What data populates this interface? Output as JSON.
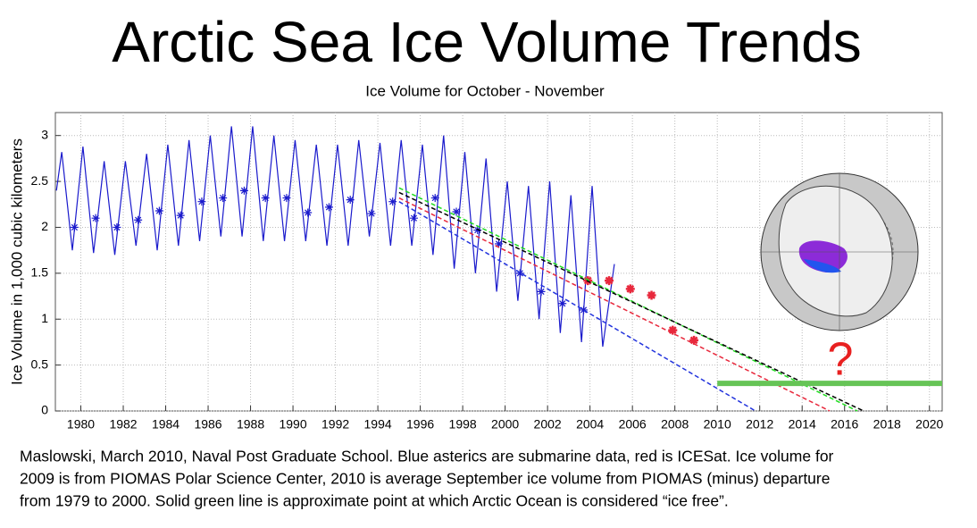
{
  "chart_data": {
    "type": "line",
    "title": "Arctic Sea Ice Volume Trends",
    "subtitle": "Ice Volume for October - November",
    "y_label": "Ice Volume in 1,000 cubic kilometers",
    "annotation": "?",
    "caption": [
      "Maslowski, March 2010, Naval Post Graduate School. Blue asterics are submarine data, red is ICESat. Ice volume for",
      "2009 is from PIOMAS Polar Science Center, 2010 is average September ice volume from PIOMAS (minus) departure",
      "from 1979 to 2000. Solid green line is approximate point at which Arctic Ocean is considered “ice free”."
    ],
    "xlim": [
      1978.8,
      2020.6
    ],
    "ylim": [
      0,
      3.25
    ],
    "xticks": [
      1980,
      1982,
      1984,
      1986,
      1988,
      1990,
      1992,
      1994,
      1996,
      1998,
      2000,
      2002,
      2004,
      2006,
      2008,
      2010,
      2012,
      2014,
      2016,
      2018,
      2020
    ],
    "yticks": [
      0,
      0.5,
      1,
      1.5,
      2,
      2.5,
      3
    ],
    "grid": true,
    "series": [
      {
        "color": "#1a1acc",
        "width": 1.2,
        "dash": false,
        "marker": "none",
        "x": [
          1978.85,
          1979.1,
          1979.6,
          1980.1,
          1980.6,
          1981.1,
          1981.6,
          1982.1,
          1982.6,
          1983.1,
          1983.6,
          1984.1,
          1984.6,
          1985.1,
          1985.6,
          1986.1,
          1986.6,
          1987.1,
          1987.6,
          1988.1,
          1988.6,
          1989.1,
          1989.6,
          1990.1,
          1990.6,
          1991.1,
          1991.6,
          1992.1,
          1992.6,
          1993.1,
          1993.6,
          1994.1,
          1994.6,
          1995.1,
          1995.6,
          1996.1,
          1996.6,
          1997.1,
          1997.6,
          1998.1,
          1998.6,
          1999.1,
          1999.6,
          2000.1,
          2000.6,
          2001.1,
          2001.6,
          2002.1,
          2002.6,
          2003.1,
          2003.6,
          2004.1,
          2004.6,
          2005.15
        ],
        "values": [
          2.4,
          2.82,
          1.75,
          2.88,
          1.72,
          2.72,
          1.7,
          2.72,
          1.8,
          2.8,
          1.75,
          2.9,
          1.8,
          2.95,
          1.85,
          3.0,
          1.9,
          3.1,
          1.9,
          3.1,
          1.85,
          3.0,
          1.85,
          2.95,
          1.85,
          2.9,
          1.8,
          2.9,
          1.8,
          2.95,
          1.9,
          2.92,
          1.8,
          2.95,
          1.8,
          2.9,
          1.7,
          3.0,
          1.55,
          2.82,
          1.5,
          2.75,
          1.3,
          2.5,
          1.2,
          2.45,
          1.0,
          2.5,
          0.85,
          2.35,
          0.75,
          2.45,
          0.7,
          1.6
        ]
      },
      {
        "color": "#1a1acc",
        "width": 1.2,
        "dash": false,
        "marker": "asterisk",
        "x": [
          1979.7,
          1980.7,
          1981.7,
          1982.7,
          1983.7,
          1984.7,
          1985.7,
          1986.7,
          1987.7,
          1988.7,
          1989.7,
          1990.7,
          1991.7,
          1992.7,
          1993.7,
          1994.7,
          1995.7,
          1996.7,
          1997.7,
          1998.7,
          1999.7,
          2000.7,
          2001.7,
          2002.7,
          2003.7
        ],
        "values": [
          2.0,
          2.1,
          2.0,
          2.08,
          2.18,
          2.13,
          2.28,
          2.32,
          2.4,
          2.32,
          2.32,
          2.16,
          2.22,
          2.3,
          2.15,
          2.28,
          2.1,
          2.32,
          2.17,
          1.97,
          1.82,
          1.5,
          1.3,
          1.17,
          1.1
        ]
      },
      {
        "color": "#e8283c",
        "width": 2.5,
        "dash": false,
        "marker": "asterisk",
        "x": [
          2003.9,
          2004.9,
          2005.9,
          2006.9,
          2007.9,
          2008.9
        ],
        "values": [
          1.42,
          1.42,
          1.33,
          1.26,
          0.88,
          0.77
        ]
      },
      {
        "color": "#22dd22",
        "width": 1.5,
        "dash": true,
        "marker": "none",
        "x": [
          1995,
          2016.6
        ],
        "values": [
          2.43,
          0
        ]
      },
      {
        "color": "#000000",
        "width": 1.5,
        "dash": true,
        "marker": "none",
        "x": [
          1995,
          2016.9
        ],
        "values": [
          2.38,
          0
        ]
      },
      {
        "color": "#e8283c",
        "width": 1.5,
        "dash": true,
        "marker": "none",
        "x": [
          1995,
          2015.3
        ],
        "values": [
          2.32,
          0
        ]
      },
      {
        "color": "#2233dd",
        "width": 1.5,
        "dash": true,
        "marker": "none",
        "x": [
          1995,
          2011.8
        ],
        "values": [
          2.28,
          0
        ]
      },
      {
        "color": "#66c456",
        "width": 6,
        "dash": false,
        "marker": "none",
        "x": [
          2010,
          2020.6
        ],
        "values": [
          0.3,
          0.3
        ]
      }
    ]
  }
}
